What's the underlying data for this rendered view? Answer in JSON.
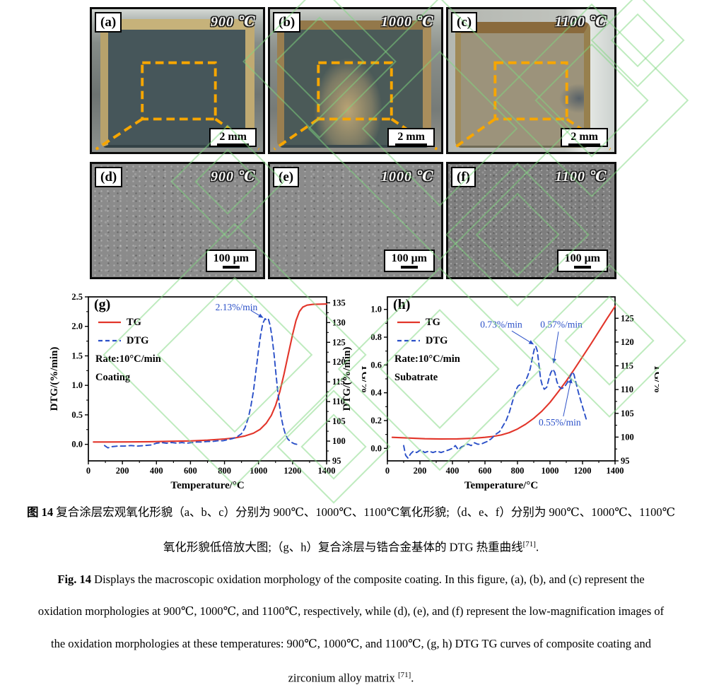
{
  "figure": {
    "photo_panels": [
      {
        "label": "(a)",
        "temp": "900 ℃",
        "scale_label": "2 mm"
      },
      {
        "label": "(b)",
        "temp": "1000 ℃",
        "scale_label": "2 mm"
      },
      {
        "label": "(c)",
        "temp": "1100 ℃",
        "scale_label": "2 mm"
      }
    ],
    "sem_panels": [
      {
        "label": "(d)",
        "temp": "900 ℃",
        "scale_label": "100 μm"
      },
      {
        "label": "(e)",
        "temp": "1000 ℃",
        "scale_label": "100 μm"
      },
      {
        "label": "(f)",
        "temp": "1100 ℃",
        "scale_label": "100 μm"
      }
    ]
  },
  "chart_data": [
    {
      "id": "g",
      "type": "line",
      "panel_label": "(g)",
      "xlabel": "Temperature/°C",
      "xlim": [
        0,
        1400
      ],
      "x_ticks": [
        "0",
        "200",
        "400",
        "600",
        "800",
        "1000",
        "1200",
        "1400"
      ],
      "left_axis": {
        "label": "DTG/(%/min)",
        "lim": [
          -0.28,
          2.5
        ],
        "ticks": [
          "0.0",
          "0.5",
          "1.0",
          "1.5",
          "2.0",
          "2.5"
        ]
      },
      "right_axis": {
        "label": "TG/%",
        "lim": [
          95,
          136.5
        ],
        "ticks": [
          "95",
          "100",
          "105",
          "110",
          "115",
          "120",
          "125",
          "130",
          "135"
        ]
      },
      "legend_extra": [
        "Rate:10°C/min",
        "Coating"
      ],
      "series": [
        {
          "name": "TG",
          "axis": "right",
          "style": "solid",
          "points": [
            [
              30,
              99.78
            ],
            [
              120,
              99.78
            ],
            [
              240,
              99.8
            ],
            [
              360,
              99.85
            ],
            [
              480,
              99.95
            ],
            [
              600,
              100.05
            ],
            [
              700,
              100.25
            ],
            [
              800,
              100.55
            ],
            [
              860,
              100.8
            ],
            [
              920,
              101.3
            ],
            [
              970,
              102.0
            ],
            [
              1010,
              103.0
            ],
            [
              1045,
              104.5
            ],
            [
              1075,
              106.5
            ],
            [
              1100,
              109.0
            ],
            [
              1125,
              112.5
            ],
            [
              1150,
              117.0
            ],
            [
              1175,
              122.0
            ],
            [
              1200,
              127.0
            ],
            [
              1220,
              130.5
            ],
            [
              1240,
              132.8
            ],
            [
              1260,
              133.9
            ],
            [
              1285,
              134.4
            ],
            [
              1320,
              134.6
            ],
            [
              1400,
              134.7
            ]
          ]
        },
        {
          "name": "DTG",
          "axis": "left",
          "style": "dashed",
          "points": [
            [
              95,
              -0.02
            ],
            [
              115,
              -0.06
            ],
            [
              135,
              -0.04
            ],
            [
              170,
              -0.03
            ],
            [
              210,
              -0.03
            ],
            [
              250,
              -0.02
            ],
            [
              290,
              -0.03
            ],
            [
              330,
              -0.02
            ],
            [
              370,
              -0.01
            ],
            [
              400,
              0.02
            ],
            [
              430,
              0.03
            ],
            [
              460,
              0.02
            ],
            [
              490,
              0.03
            ],
            [
              520,
              0.02
            ],
            [
              550,
              0.03
            ],
            [
              580,
              0.02
            ],
            [
              610,
              0.03
            ],
            [
              640,
              0.04
            ],
            [
              670,
              0.04
            ],
            [
              700,
              0.05
            ],
            [
              730,
              0.05
            ],
            [
              760,
              0.06
            ],
            [
              790,
              0.06
            ],
            [
              820,
              0.08
            ],
            [
              850,
              0.1
            ],
            [
              875,
              0.13
            ],
            [
              900,
              0.18
            ],
            [
              920,
              0.28
            ],
            [
              940,
              0.45
            ],
            [
              955,
              0.65
            ],
            [
              970,
              0.9
            ],
            [
              985,
              1.25
            ],
            [
              1000,
              1.6
            ],
            [
              1012,
              1.85
            ],
            [
              1025,
              2.05
            ],
            [
              1038,
              2.13
            ],
            [
              1050,
              2.1
            ],
            [
              1058,
              2.12
            ],
            [
              1068,
              2.02
            ],
            [
              1080,
              1.8
            ],
            [
              1092,
              1.5
            ],
            [
              1102,
              1.2
            ],
            [
              1112,
              0.92
            ],
            [
              1122,
              0.68
            ],
            [
              1132,
              0.48
            ],
            [
              1145,
              0.3
            ],
            [
              1158,
              0.17
            ],
            [
              1172,
              0.09
            ],
            [
              1190,
              0.04
            ],
            [
              1210,
              0.01
            ],
            [
              1225,
              0.0
            ]
          ]
        }
      ],
      "annotations": [
        {
          "text": "2.13%/min",
          "tx": 870,
          "ty": 2.32,
          "sx": 955,
          "sy": 2.27,
          "hx": 1025,
          "hy": 2.15
        }
      ]
    },
    {
      "id": "h",
      "type": "line",
      "panel_label": "(h)",
      "xlabel": "Temperature/°C",
      "xlim": [
        0,
        1400
      ],
      "x_ticks": [
        "0",
        "200",
        "400",
        "600",
        "800",
        "1000",
        "1200",
        "1400"
      ],
      "left_axis": {
        "label": "DTG/(%/min)",
        "lim": [
          -0.09,
          1.09
        ],
        "ticks": [
          "0.0",
          "0.2",
          "0.4",
          "0.6",
          "0.8",
          "1.0"
        ]
      },
      "right_axis": {
        "label": "TG/%",
        "lim": [
          95,
          129.5
        ],
        "ticks": [
          "95",
          "100",
          "105",
          "110",
          "115",
          "120",
          "125"
        ]
      },
      "legend_extra": [
        "Rate:10°C/min",
        "Subatrate"
      ],
      "series": [
        {
          "name": "TG",
          "axis": "right",
          "style": "solid",
          "points": [
            [
              30,
              99.95
            ],
            [
              130,
              99.8
            ],
            [
              230,
              99.65
            ],
            [
              330,
              99.6
            ],
            [
              430,
              99.62
            ],
            [
              530,
              99.75
            ],
            [
              600,
              99.95
            ],
            [
              650,
              100.15
            ],
            [
              700,
              100.45
            ],
            [
              750,
              100.95
            ],
            [
              800,
              101.7
            ],
            [
              850,
              102.7
            ],
            [
              900,
              103.95
            ],
            [
              950,
              105.45
            ],
            [
              1000,
              107.3
            ],
            [
              1050,
              109.5
            ],
            [
              1100,
              111.8
            ],
            [
              1150,
              114.3
            ],
            [
              1200,
              116.9
            ],
            [
              1250,
              119.5
            ],
            [
              1300,
              122.2
            ],
            [
              1350,
              124.9
            ],
            [
              1400,
              127.5
            ]
          ]
        },
        {
          "name": "DTG",
          "axis": "left",
          "style": "dashed",
          "points": [
            [
              100,
              0.02
            ],
            [
              112,
              -0.05
            ],
            [
              126,
              -0.07
            ],
            [
              142,
              -0.04
            ],
            [
              160,
              -0.02
            ],
            [
              180,
              -0.03
            ],
            [
              205,
              -0.01
            ],
            [
              230,
              -0.03
            ],
            [
              255,
              -0.02
            ],
            [
              280,
              -0.03
            ],
            [
              305,
              -0.02
            ],
            [
              330,
              -0.03
            ],
            [
              355,
              -0.02
            ],
            [
              380,
              -0.01
            ],
            [
              400,
              0.0
            ],
            [
              418,
              0.02
            ],
            [
              436,
              -0.01
            ],
            [
              455,
              0.01
            ],
            [
              475,
              0.02
            ],
            [
              495,
              0.03
            ],
            [
              515,
              0.02
            ],
            [
              535,
              0.04
            ],
            [
              555,
              0.03
            ],
            [
              575,
              0.03
            ],
            [
              595,
              0.04
            ],
            [
              615,
              0.05
            ],
            [
              640,
              0.07
            ],
            [
              665,
              0.1
            ],
            [
              690,
              0.12
            ],
            [
              710,
              0.16
            ],
            [
              730,
              0.2
            ],
            [
              750,
              0.26
            ],
            [
              770,
              0.34
            ],
            [
              790,
              0.42
            ],
            [
              805,
              0.45
            ],
            [
              820,
              0.46
            ],
            [
              835,
              0.45
            ],
            [
              848,
              0.48
            ],
            [
              862,
              0.52
            ],
            [
              878,
              0.57
            ],
            [
              893,
              0.66
            ],
            [
              905,
              0.72
            ],
            [
              912,
              0.735
            ],
            [
              922,
              0.7
            ],
            [
              932,
              0.6
            ],
            [
              942,
              0.5
            ],
            [
              952,
              0.455
            ],
            [
              965,
              0.425
            ],
            [
              980,
              0.44
            ],
            [
              993,
              0.5
            ],
            [
              1005,
              0.545
            ],
            [
              1018,
              0.57
            ],
            [
              1030,
              0.545
            ],
            [
              1042,
              0.48
            ],
            [
              1055,
              0.445
            ],
            [
              1070,
              0.43
            ],
            [
              1088,
              0.44
            ],
            [
              1105,
              0.47
            ],
            [
              1122,
              0.51
            ],
            [
              1138,
              0.55
            ],
            [
              1148,
              0.53
            ],
            [
              1160,
              0.47
            ],
            [
              1175,
              0.4
            ],
            [
              1192,
              0.33
            ],
            [
              1210,
              0.26
            ],
            [
              1228,
              0.19
            ]
          ]
        }
      ],
      "annotations": [
        {
          "text": "0.73%/min",
          "tx": 700,
          "ty": 0.89,
          "sx": 765,
          "sy": 0.845,
          "hx": 897,
          "hy": 0.75
        },
        {
          "text": "0.57%/min",
          "tx": 1070,
          "ty": 0.89,
          "sx": 1052,
          "sy": 0.84,
          "hx": 1022,
          "hy": 0.615
        },
        {
          "text": "0.55%/min",
          "tx": 1060,
          "ty": 0.185,
          "sx": 1082,
          "sy": 0.23,
          "hx": 1130,
          "hy": 0.5
        }
      ]
    }
  ],
  "caption": {
    "zh_line1_bold": "图 14",
    "zh_line1_rest": " 复合涂层宏观氧化形貌（a、b、c）分别为 900℃、1000℃、1100℃氧化形貌;（d、e、f）分别为 900℃、1000℃、1100℃",
    "zh_line2_main": "氧化形貌低倍放大图;（g、h）复合涂层与锆合金基体的 DTG 热重曲线",
    "zh_line2_ref": "[71]",
    "zh_line2_end": ".",
    "en_line1_bold": "Fig. 14",
    "en_line1_rest": " Displays the macroscopic oxidation morphology of the composite coating. In this figure, (a), (b), and (c) represent the",
    "en_line2": "oxidation morphologies at 900℃, 1000℃, and 1100℃, respectively, while (d), (e), and (f) represent the low-magnification images of",
    "en_line3": "the oxidation morphologies at these temperatures: 900℃, 1000℃, and 1100℃, (g, h) DTG TG curves of composite coating and",
    "en_line4_main": "zirconium alloy matrix ",
    "en_line4_ref": "[71]",
    "en_line4_end": "."
  },
  "colors": {
    "tg": "#e2352a",
    "dtg": "#2b50c8",
    "annotation": "#2b50c8",
    "roi": "#f7a600",
    "watermark": "#7fd87f"
  }
}
